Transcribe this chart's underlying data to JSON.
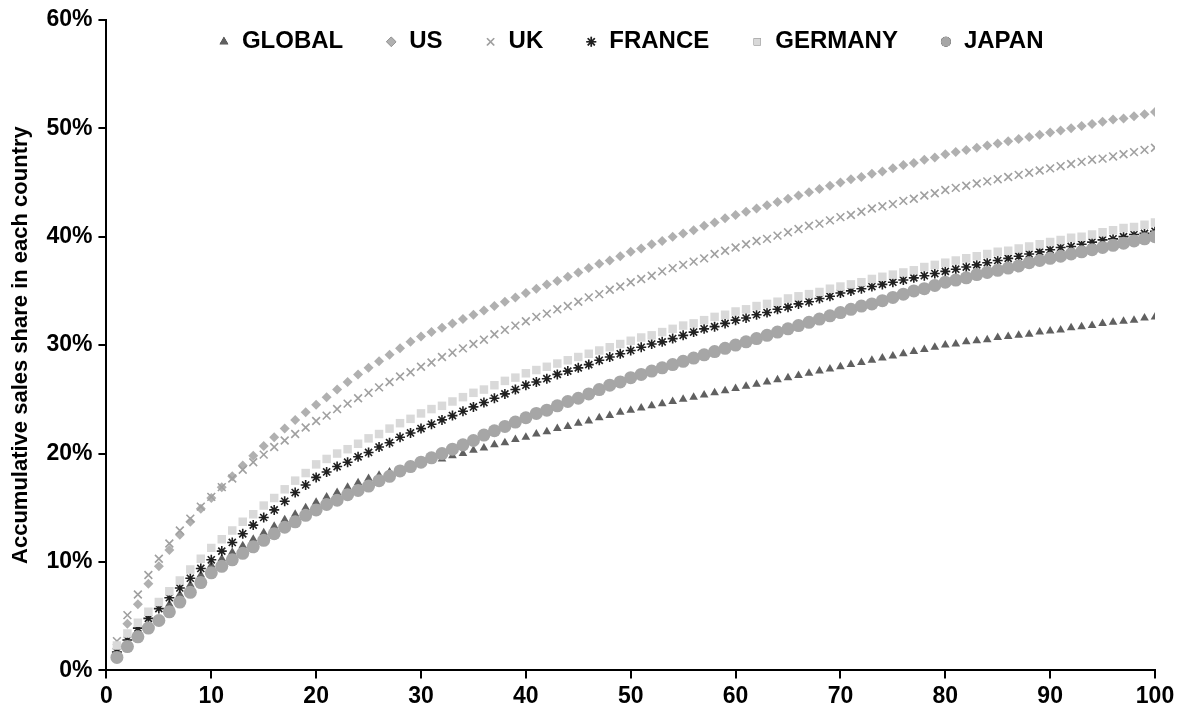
{
  "chart_data": {
    "type": "scatter",
    "ylabel": "Accumulative sales share in each country",
    "x": [
      1,
      2,
      3,
      4,
      5,
      6,
      7,
      8,
      9,
      10,
      11,
      12,
      13,
      14,
      15,
      16,
      17,
      18,
      19,
      20,
      21,
      22,
      23,
      24,
      25,
      26,
      27,
      28,
      29,
      30,
      31,
      32,
      33,
      34,
      35,
      36,
      37,
      38,
      39,
      40,
      41,
      42,
      43,
      44,
      45,
      46,
      47,
      48,
      49,
      50,
      51,
      52,
      53,
      54,
      55,
      56,
      57,
      58,
      59,
      60,
      61,
      62,
      63,
      64,
      65,
      66,
      67,
      68,
      69,
      70,
      71,
      72,
      73,
      74,
      75,
      76,
      77,
      78,
      79,
      80,
      81,
      82,
      83,
      84,
      85,
      86,
      87,
      88,
      89,
      90,
      91,
      92,
      93,
      94,
      95,
      96,
      97,
      98,
      99,
      100
    ],
    "xlim": [
      0,
      100
    ],
    "xticks": [
      0,
      10,
      20,
      30,
      40,
      50,
      60,
      70,
      80,
      90,
      100
    ],
    "ylim": [
      0,
      60
    ],
    "yticks": [
      {
        "value": 0,
        "label": "0%"
      },
      {
        "value": 10,
        "label": "10%"
      },
      {
        "value": 20,
        "label": "20%"
      },
      {
        "value": 30,
        "label": "30%"
      },
      {
        "value": 40,
        "label": "40%"
      },
      {
        "value": 50,
        "label": "50%"
      },
      {
        "value": 60,
        "label": "60%"
      }
    ],
    "legend": "top",
    "grid": false,
    "series": [
      {
        "name": "GLOBAL",
        "color": "#606060",
        "marker": "triangle",
        "values": [
          null,
          null,
          null,
          null,
          null,
          6.1,
          7.0,
          7.9,
          8.8,
          9.7,
          10.3,
          10.9,
          11.5,
          12.1,
          12.7,
          13.3,
          13.9,
          14.4,
          15.0,
          15.5,
          16.0,
          16.4,
          16.9,
          17.3,
          17.7,
          18.0,
          18.3,
          null,
          null,
          null,
          null,
          19.5,
          19.8,
          20.0,
          20.3,
          20.5,
          20.8,
          21.0,
          21.3,
          21.5,
          21.8,
          22.0,
          22.3,
          22.5,
          22.8,
          23.0,
          23.3,
          23.5,
          23.8,
          24.0,
          24.2,
          24.4,
          24.6,
          24.8,
          25.0,
          25.2,
          25.4,
          25.6,
          25.8,
          26.0,
          26.2,
          26.4,
          26.6,
          26.8,
          27.0,
          27.2,
          27.4,
          27.6,
          27.8,
          28.0,
          28.2,
          28.4,
          28.6,
          28.8,
          29.0,
          29.2,
          29.4,
          29.6,
          29.8,
          30.0,
          30.1,
          30.3,
          30.4,
          30.5,
          30.7,
          30.8,
          30.9,
          31.0,
          31.2,
          31.3,
          31.4,
          31.6,
          31.7,
          31.8,
          32.0,
          32.1,
          32.2,
          32.3,
          32.5,
          32.6
        ]
      },
      {
        "name": "US",
        "color": "#b0b0b0",
        "marker": "diamond",
        "values": [
          2.0,
          4.3,
          6.1,
          8.0,
          9.6,
          11.1,
          12.5,
          13.7,
          14.9,
          15.9,
          16.9,
          17.9,
          18.9,
          19.8,
          20.7,
          21.5,
          22.3,
          23.1,
          23.8,
          24.5,
          25.2,
          25.9,
          26.6,
          27.3,
          27.9,
          28.5,
          29.1,
          29.7,
          30.3,
          30.8,
          31.2,
          31.6,
          32.0,
          32.4,
          32.8,
          33.2,
          33.6,
          34.0,
          34.4,
          34.8,
          35.2,
          35.6,
          35.9,
          36.3,
          36.7,
          37.1,
          37.5,
          37.8,
          38.2,
          38.6,
          38.9,
          39.3,
          39.6,
          40.0,
          40.3,
          40.6,
          41.0,
          41.3,
          41.7,
          42.0,
          42.3,
          42.6,
          42.9,
          43.2,
          43.5,
          43.8,
          44.1,
          44.4,
          44.7,
          45.0,
          45.3,
          45.5,
          45.8,
          46.0,
          46.3,
          46.6,
          46.8,
          47.1,
          47.3,
          47.6,
          47.8,
          48.0,
          48.2,
          48.4,
          48.6,
          48.8,
          49.0,
          49.2,
          49.4,
          49.6,
          49.8,
          50.0,
          50.2,
          50.4,
          50.6,
          50.8,
          50.9,
          51.1,
          51.3,
          51.5
        ]
      },
      {
        "name": "UK",
        "color": "#a0a0a0",
        "marker": "cross",
        "values": [
          2.7,
          5.1,
          7.0,
          8.8,
          10.3,
          11.7,
          12.9,
          14.0,
          15.1,
          16.0,
          16.9,
          17.7,
          18.5,
          19.2,
          19.9,
          20.6,
          21.2,
          21.8,
          22.4,
          23.0,
          23.5,
          24.1,
          24.6,
          25.1,
          25.6,
          26.1,
          26.6,
          27.1,
          27.5,
          28.0,
          28.4,
          28.9,
          29.3,
          29.7,
          30.1,
          30.5,
          31.0,
          31.4,
          31.8,
          32.2,
          32.6,
          32.9,
          33.3,
          33.6,
          34.0,
          34.4,
          34.7,
          35.1,
          35.4,
          35.8,
          36.1,
          36.4,
          36.8,
          37.1,
          37.4,
          37.7,
          38.0,
          38.4,
          38.7,
          39.0,
          39.3,
          39.6,
          39.8,
          40.1,
          40.4,
          40.7,
          41.0,
          41.2,
          41.5,
          41.8,
          42.0,
          42.3,
          42.6,
          42.8,
          43.0,
          43.3,
          43.5,
          43.8,
          44.0,
          44.3,
          44.5,
          44.7,
          44.9,
          45.1,
          45.3,
          45.5,
          45.7,
          45.9,
          46.1,
          46.3,
          46.5,
          46.7,
          46.9,
          47.1,
          47.2,
          47.4,
          47.6,
          47.8,
          48.0,
          48.2
        ]
      },
      {
        "name": "FRANCE",
        "color": "#202020",
        "values": [
          1.7,
          2.8,
          3.9,
          4.8,
          5.7,
          6.7,
          7.6,
          8.5,
          9.4,
          10.2,
          11.0,
          11.8,
          12.6,
          13.4,
          14.1,
          14.8,
          15.6,
          16.4,
          17.1,
          17.8,
          18.3,
          18.8,
          19.2,
          19.7,
          20.1,
          20.6,
          21.0,
          21.5,
          21.9,
          22.3,
          22.7,
          23.1,
          23.5,
          23.9,
          24.3,
          24.7,
          25.1,
          25.5,
          25.9,
          26.3,
          26.6,
          26.9,
          27.3,
          27.6,
          27.9,
          28.2,
          28.6,
          28.9,
          29.2,
          29.5,
          29.8,
          30.1,
          30.3,
          30.6,
          30.9,
          31.2,
          31.5,
          31.7,
          32.0,
          32.3,
          32.5,
          32.8,
          33.0,
          33.3,
          33.5,
          33.8,
          34.0,
          34.3,
          34.5,
          34.8,
          35.0,
          35.2,
          35.4,
          35.6,
          35.8,
          36.0,
          36.2,
          36.4,
          36.6,
          36.8,
          37.0,
          37.2,
          37.4,
          37.6,
          37.8,
          38.0,
          38.2,
          38.4,
          38.6,
          38.8,
          39.0,
          39.1,
          39.3,
          39.5,
          39.7,
          39.8,
          40.0,
          40.2,
          40.3,
          40.5
        ]
      },
      {
        "name": "GERMANY",
        "color": "#d9d9d9",
        "marker": "square",
        "values": [
          2.3,
          3.4,
          4.4,
          5.4,
          6.3,
          7.3,
          8.3,
          9.3,
          10.3,
          11.3,
          12.1,
          12.9,
          13.7,
          14.4,
          15.2,
          15.9,
          16.7,
          17.5,
          18.2,
          19.0,
          19.5,
          20.0,
          20.4,
          20.9,
          21.4,
          21.8,
          22.3,
          22.8,
          23.2,
          23.7,
          24.1,
          24.4,
          24.8,
          25.2,
          25.6,
          25.9,
          26.3,
          26.7,
          27.0,
          27.4,
          27.7,
          28.0,
          28.3,
          28.6,
          28.9,
          29.2,
          29.5,
          29.8,
          30.1,
          30.4,
          30.7,
          30.9,
          31.2,
          31.5,
          31.8,
          32.0,
          32.3,
          32.6,
          32.8,
          33.1,
          33.3,
          33.6,
          33.8,
          34.0,
          34.3,
          34.5,
          34.7,
          34.9,
          35.2,
          35.4,
          35.6,
          35.8,
          36.1,
          36.3,
          36.5,
          36.7,
          36.9,
          37.2,
          37.4,
          37.6,
          37.8,
          38.0,
          38.2,
          38.4,
          38.6,
          38.7,
          38.9,
          39.1,
          39.3,
          39.5,
          39.7,
          39.9,
          40.0,
          40.2,
          40.4,
          40.6,
          40.8,
          40.9,
          41.1,
          41.3
        ]
      },
      {
        "name": "JAPAN",
        "color": "#a6a6a6",
        "marker": "circle",
        "values": [
          1.2,
          2.2,
          3.1,
          3.9,
          4.6,
          5.4,
          6.3,
          7.2,
          8.1,
          9.0,
          9.6,
          10.2,
          10.8,
          11.4,
          12.0,
          12.6,
          13.2,
          13.7,
          14.3,
          14.8,
          15.3,
          15.7,
          16.2,
          16.6,
          17.0,
          17.5,
          17.9,
          18.4,
          18.8,
          19.2,
          19.6,
          20.0,
          20.4,
          20.8,
          21.2,
          21.7,
          22.1,
          22.5,
          22.9,
          23.3,
          23.7,
          24.0,
          24.4,
          24.8,
          25.1,
          25.5,
          25.9,
          26.3,
          26.6,
          27.0,
          27.3,
          27.6,
          27.9,
          28.2,
          28.5,
          28.8,
          29.1,
          29.4,
          29.7,
          30.0,
          30.3,
          30.6,
          30.9,
          31.2,
          31.5,
          31.8,
          32.1,
          32.4,
          32.7,
          33.0,
          33.3,
          33.6,
          33.8,
          34.1,
          34.4,
          34.7,
          35.0,
          35.2,
          35.5,
          35.8,
          36.0,
          36.2,
          36.5,
          36.7,
          36.9,
          37.1,
          37.3,
          37.6,
          37.8,
          38.0,
          38.2,
          38.4,
          38.6,
          38.8,
          39.0,
          39.2,
          39.4,
          39.6,
          39.8,
          40.0
        ]
      }
    ]
  }
}
